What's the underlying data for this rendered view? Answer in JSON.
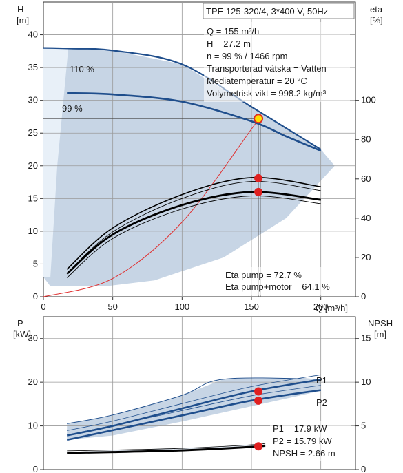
{
  "chart_data": [
    {
      "type": "line",
      "title": "TPE 125-320/4, 3*400 V, 50Hz",
      "ylabel_left": [
        "H",
        "[m]"
      ],
      "ylabel_right": [
        "eta",
        "[%]"
      ],
      "xlabel": "Q [m³/h]",
      "xlim": [
        0,
        225
      ],
      "ylim_left": [
        0,
        45
      ],
      "ylim_right": [
        0,
        150
      ],
      "xticks": [
        "0",
        "50",
        "100",
        "150",
        "200"
      ],
      "yticks_left": [
        "0",
        "5",
        "10",
        "15",
        "20",
        "25",
        "30",
        "35",
        "40"
      ],
      "yticks_right": [
        "0",
        "20",
        "40",
        "60",
        "80",
        "100"
      ],
      "info_lines": [
        "Q = 155 m³/h",
        "H = 27.2 m",
        "n = 99 % / 1466 rpm",
        "Transporterad vätska = Vatten",
        "Mediatemperatur = 20 °C",
        "Volymetrisk vikt = 998.2 kg/m³"
      ],
      "eff_lines": [
        "Eta pump = 72.7 %",
        "Eta pump+motor = 64.1 %"
      ],
      "curve_labels": [
        "110 %",
        "99 %"
      ],
      "grid": true,
      "series": [
        {
          "name": "110 %",
          "color": "#1f4e8c",
          "x": [
            0,
            20,
            50,
            100,
            150,
            200
          ],
          "y": [
            38,
            37.9,
            37.6,
            35.5,
            29,
            22.5
          ]
        },
        {
          "name": "99 %",
          "color": "#1f4e8c",
          "x": [
            17,
            50,
            100,
            150,
            175,
            200
          ],
          "y": [
            31.1,
            30.9,
            29.8,
            26.8,
            24.5,
            22.3
          ]
        },
        {
          "color": "#000000",
          "x": [
            17,
            50,
            100,
            150,
            200
          ],
          "y": [
            4.2,
            10.5,
            15.6,
            18.2,
            16.8
          ]
        },
        {
          "color": "#000000",
          "x": [
            17,
            50,
            100,
            150,
            200
          ],
          "y": [
            3.5,
            9.5,
            14.0,
            16.0,
            14.8
          ]
        }
      ],
      "system_curve": {
        "color": "#e03030",
        "x": [
          0,
          50,
          100,
          150,
          155
        ],
        "y": [
          0,
          2.8,
          11.4,
          25.6,
          27.2
        ]
      },
      "operating_points": [
        {
          "x": 155,
          "y": 27.2,
          "color": "#ffe000"
        },
        {
          "x": 155,
          "y": 18.1,
          "color": "#e02020"
        },
        {
          "x": 155,
          "y": 16.0,
          "color": "#e02020"
        }
      ]
    },
    {
      "type": "line",
      "ylabel_left": [
        "P",
        "[kW]"
      ],
      "ylabel_right": [
        "NPSH",
        "[m]"
      ],
      "xlim": [
        0,
        225
      ],
      "ylim_left": [
        0,
        35
      ],
      "ylim_right": [
        0,
        17.5
      ],
      "yticks_left": [
        "0",
        "10",
        "20",
        "30"
      ],
      "yticks_right": [
        "0",
        "5",
        "10",
        "15"
      ],
      "info_lines": [
        "P1 = 17.9 kW",
        "P2 = 15.79 kW",
        "NPSH = 2.66 m"
      ],
      "curve_labels": [
        "P1",
        "P2"
      ],
      "grid": true,
      "series": [
        {
          "name": "P1",
          "color": "#1f4e8c",
          "x": [
            17,
            50,
            100,
            150,
            200
          ],
          "y": [
            7.8,
            10.0,
            14.0,
            17.9,
            20.6
          ]
        },
        {
          "name": "P2",
          "color": "#1f4e8c",
          "x": [
            17,
            50,
            100,
            150,
            200
          ],
          "y": [
            6.8,
            9.0,
            12.4,
            15.8,
            18.2
          ]
        },
        {
          "name": "NPSH",
          "color": "#000000",
          "axis": "right",
          "x": [
            17,
            50,
            100,
            150,
            160
          ],
          "y": [
            1.9,
            2.0,
            2.2,
            2.6,
            2.75
          ]
        }
      ],
      "operating_points": [
        {
          "x": 155,
          "y": 17.9,
          "color": "#e02020"
        },
        {
          "x": 155,
          "y": 15.79,
          "color": "#e02020"
        },
        {
          "x": 155,
          "y": 5.32,
          "color": "#e02020"
        }
      ]
    }
  ]
}
